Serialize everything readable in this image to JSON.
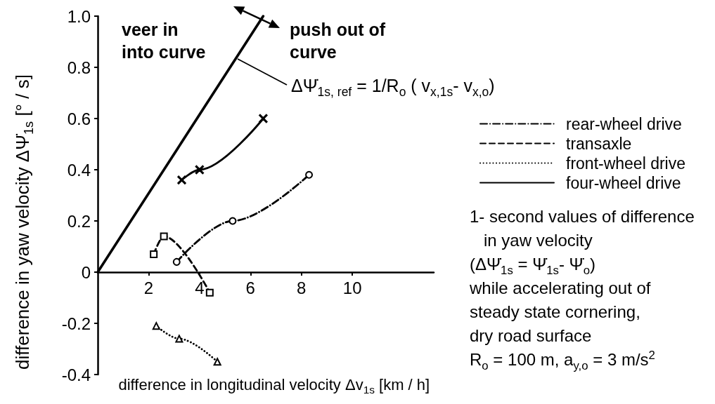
{
  "chart_data": {
    "type": "line",
    "xlabel": "difference in longitudinal velocity Δv$_{1s}$ [km / h]",
    "ylabel": "difference in yaw velocity ΔΨ̇$_{1s}$ [° / s]",
    "xlim": [
      0,
      13.2
    ],
    "xticks": [
      2,
      4,
      6,
      8,
      10
    ],
    "ylim": [
      -0.4,
      1.0
    ],
    "yticks": [
      -0.4,
      -0.2,
      0,
      0.2,
      0.4,
      0.6,
      0.8,
      {
        "value": 1.0,
        "label": "1.0"
      }
    ],
    "legend": "right",
    "series": [
      {
        "name": "rear-wheel drive",
        "color": "#000000",
        "x": [
          3.1,
          5.3,
          8.3
        ],
        "values": [
          0.04,
          0.2,
          0.38
        ],
        "marker": "circle",
        "line_style": "dashdot"
      },
      {
        "name": "transaxle",
        "color": "#000000",
        "x": [
          2.2,
          2.6,
          4.4
        ],
        "values": [
          0.07,
          0.14,
          -0.08
        ],
        "marker": "square",
        "line_style": "dashed"
      },
      {
        "name": "front-wheel drive",
        "color": "#000000",
        "x": [
          2.3,
          3.2,
          4.7
        ],
        "values": [
          -0.21,
          -0.26,
          -0.35
        ],
        "marker": "triangle",
        "line_style": "dotted"
      },
      {
        "name": "four-wheel drive",
        "color": "#000000",
        "x": [
          3.3,
          4.0,
          6.5
        ],
        "values": [
          0.36,
          0.4,
          0.6
        ],
        "marker": "cross",
        "line_style": "solid"
      },
      {
        "color": "#000000",
        "x": [
          0,
          6.5
        ],
        "values": [
          0,
          1.0
        ],
        "marker": "none",
        "line_style": "solid"
      }
    ],
    "annotations": [
      "veer in\ninto curve",
      "push out of\ncurve",
      "ΔΨ̇$_{1s, ref}$ = 1/R$_{o}$ ( v$_{x,1s}$- v$_{x,o}$)",
      "1- second values of difference\n   in yaw velocity\n(ΔΨ̇$_{1s}$ = Ψ̇$_{1s}$- Ψ̇$_{o}$)\nwhile accelerating out of\nsteady state cornering,\ndry road surface\nR$_{o}$ = 100 m, a$_{y,o}$ = 3 m/s$^{2}$"
    ]
  }
}
